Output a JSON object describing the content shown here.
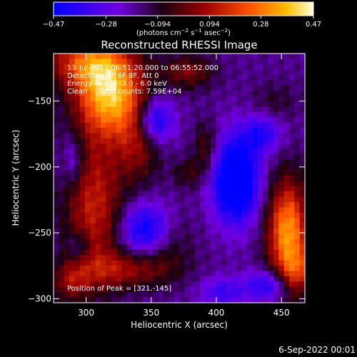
{
  "chart_data": {
    "type": "heatmap",
    "title": "Reconstructed RHESSI Image",
    "xlabel": "Heliocentric X (arcsec)",
    "ylabel": "Heliocentric Y (arcsec)",
    "xlim": [
      275,
      468
    ],
    "ylim": [
      -303,
      -114
    ],
    "x_ticks": [
      300,
      350,
      400,
      450
    ],
    "x_tick_labels": [
      "300",
      "350",
      "400",
      "450"
    ],
    "y_ticks": [
      -150,
      -200,
      -250,
      -300
    ],
    "y_tick_labels": [
      "−150",
      "−200",
      "−250",
      "−300"
    ],
    "colorbar": {
      "min": -0.47,
      "max": 0.47,
      "tick_values": [
        -0.47,
        -0.28,
        -0.094,
        0.094,
        0.28,
        0.47
      ],
      "tick_labels": [
        "−0.47",
        "−0.28",
        "−0.094",
        "0.094",
        "0.28",
        "0.47"
      ],
      "unit_prefix": "(photons cm",
      "unit_exp1": "−2",
      "unit_mid1": " s",
      "unit_exp2": "−1",
      "unit_mid2": " asec",
      "unit_exp3": "−2",
      "unit_suffix": ")"
    },
    "annotations": {
      "time_range": "13-Jul-2017 06:51:20.000 to 06:55:52.000",
      "detectors": "Detectors: 3F 6F 8F, Att 0",
      "energy": "Energy Range: 3.0 - 6.0 keV",
      "clean": "Clean     Total counts: 7.59E+04",
      "peak": "Position of Peak = [321,-145]"
    },
    "features": [
      {
        "x": 318,
        "y": -145,
        "sx": 18,
        "sy": 22,
        "a": 0.52
      },
      {
        "x": 300,
        "y": -120,
        "sx": 22,
        "sy": 14,
        "a": 0.32
      },
      {
        "x": 340,
        "y": -180,
        "sx": 12,
        "sy": 22,
        "a": 0.22
      },
      {
        "x": 306,
        "y": -230,
        "sx": 16,
        "sy": 40,
        "a": 0.3
      },
      {
        "x": 330,
        "y": -278,
        "sx": 26,
        "sy": 10,
        "a": 0.22
      },
      {
        "x": 288,
        "y": -288,
        "sx": 10,
        "sy": 10,
        "a": 0.18
      },
      {
        "x": 378,
        "y": -128,
        "sx": 14,
        "sy": 9,
        "a": 0.2
      },
      {
        "x": 392,
        "y": -186,
        "sx": 7,
        "sy": 14,
        "a": 0.16
      },
      {
        "x": 360,
        "y": -256,
        "sx": 14,
        "sy": 16,
        "a": 0.16
      },
      {
        "x": 378,
        "y": -205,
        "sx": 8,
        "sy": 8,
        "a": 0.12
      },
      {
        "x": 455,
        "y": -250,
        "sx": 11,
        "sy": 28,
        "a": 0.5
      },
      {
        "x": 463,
        "y": -280,
        "sx": 8,
        "sy": 12,
        "a": 0.2
      },
      {
        "x": 445,
        "y": -150,
        "sx": 12,
        "sy": 10,
        "a": 0.08
      },
      {
        "x": 352,
        "y": -165,
        "sx": 10,
        "sy": 12,
        "a": -0.34
      },
      {
        "x": 347,
        "y": -248,
        "sx": 14,
        "sy": 14,
        "a": -0.36
      },
      {
        "x": 415,
        "y": -210,
        "sx": 12,
        "sy": 22,
        "a": -0.5
      },
      {
        "x": 435,
        "y": -175,
        "sx": 10,
        "sy": 10,
        "a": -0.22
      },
      {
        "x": 440,
        "y": -290,
        "sx": 12,
        "sy": 8,
        "a": -0.25
      },
      {
        "x": 405,
        "y": -295,
        "sx": 12,
        "sy": 8,
        "a": -0.18
      },
      {
        "x": 290,
        "y": -195,
        "sx": 6,
        "sy": 14,
        "a": -0.16
      },
      {
        "x": 295,
        "y": -260,
        "sx": 6,
        "sy": 8,
        "a": -0.14
      }
    ],
    "background": -0.17,
    "grid_cells": [
      48,
      47
    ]
  },
  "footer": {
    "date": "6-Sep-2022 00:01"
  }
}
